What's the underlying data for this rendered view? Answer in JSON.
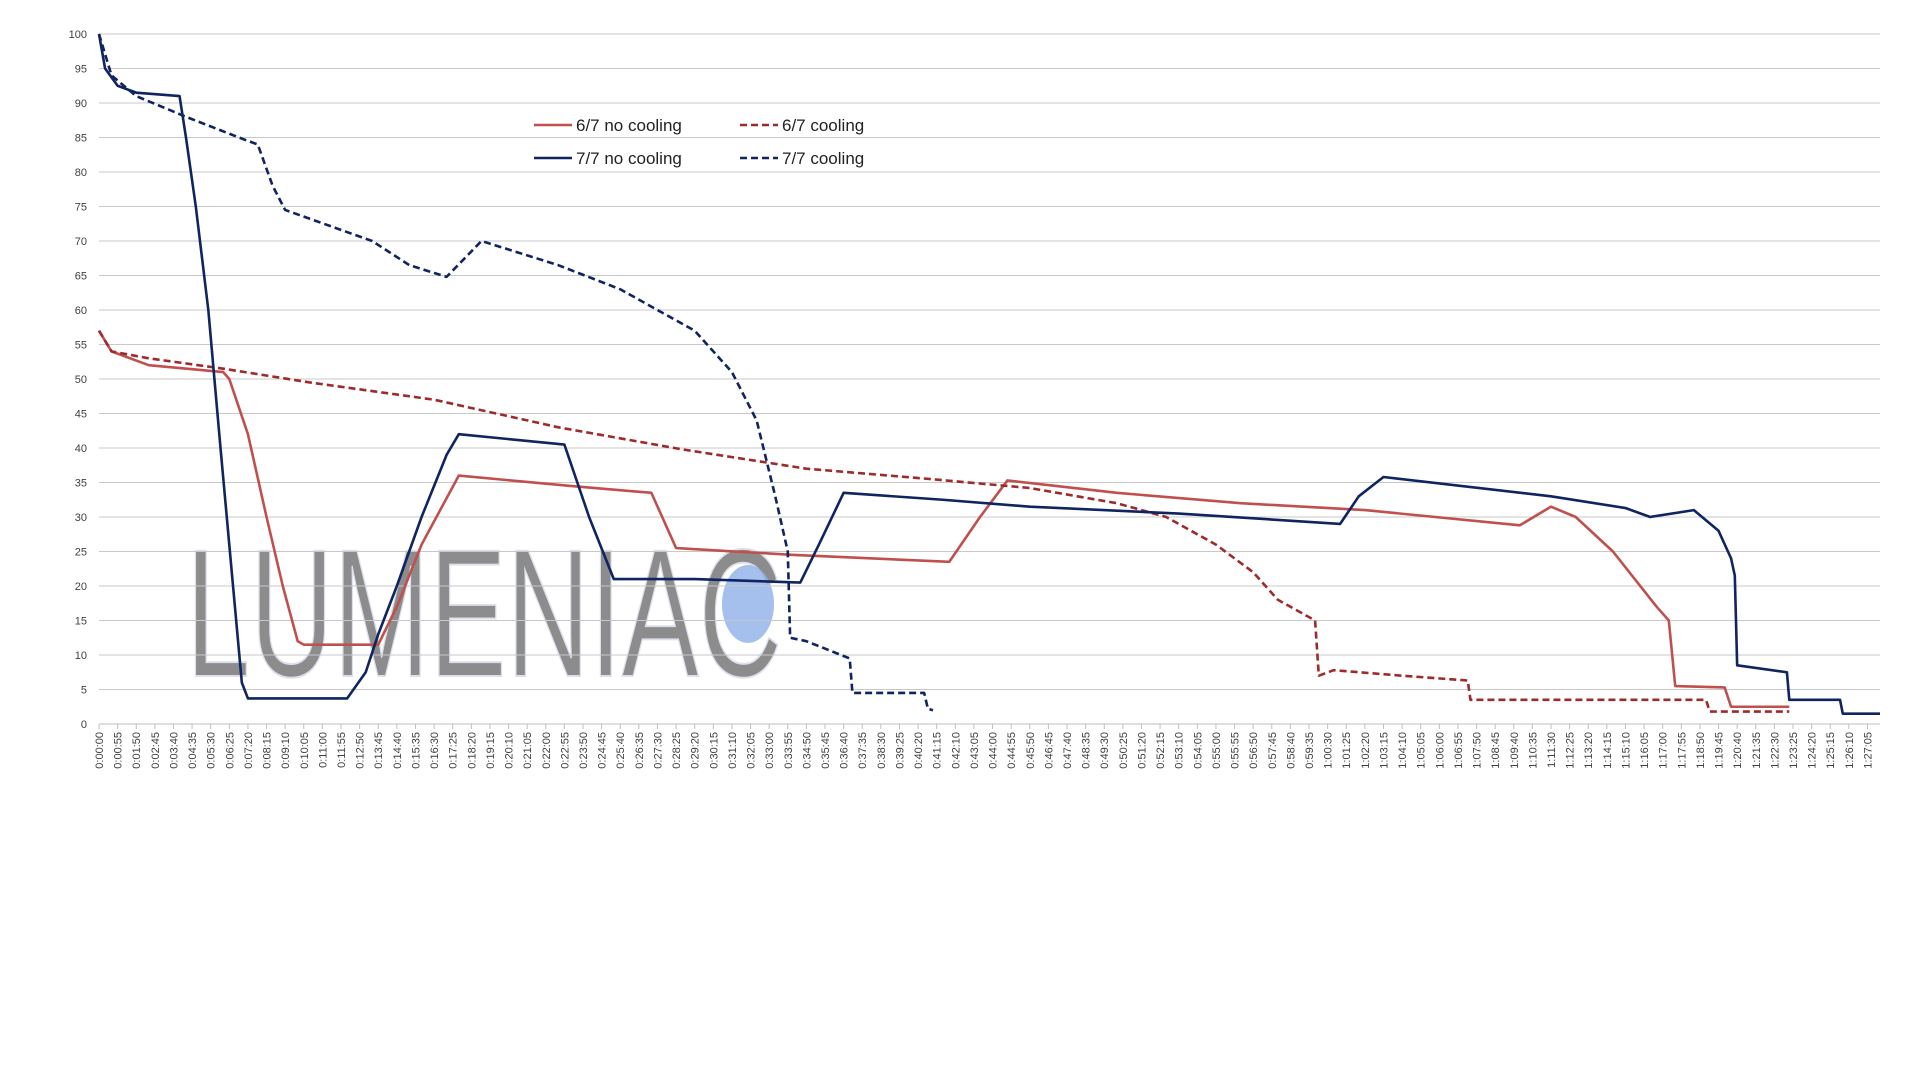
{
  "chart_data": {
    "type": "line",
    "watermark": "LUMENIAC",
    "xlim": [
      0,
      5262
    ],
    "ylim": [
      0,
      100
    ],
    "yticks": [
      0,
      5,
      10,
      15,
      20,
      25,
      30,
      35,
      40,
      45,
      50,
      55,
      60,
      65,
      70,
      75,
      80,
      85,
      90,
      95,
      100
    ],
    "xticks": [
      {
        "value": 0,
        "label": "0:00:00"
      },
      {
        "value": 55,
        "label": "0:00:55"
      },
      {
        "value": 110,
        "label": "0:01:50"
      },
      {
        "value": 165,
        "label": "0:02:45"
      },
      {
        "value": 220,
        "label": "0:03:40"
      },
      {
        "value": 275,
        "label": "0:04:35"
      },
      {
        "value": 330,
        "label": "0:05:30"
      },
      {
        "value": 385,
        "label": "0:06:25"
      },
      {
        "value": 440,
        "label": "0:07:20"
      },
      {
        "value": 495,
        "label": "0:08:15"
      },
      {
        "value": 550,
        "label": "0:09:10"
      },
      {
        "value": 605,
        "label": "0:10:05"
      },
      {
        "value": 660,
        "label": "0:11:00"
      },
      {
        "value": 715,
        "label": "0:11:55"
      },
      {
        "value": 770,
        "label": "0:12:50"
      },
      {
        "value": 825,
        "label": "0:13:45"
      },
      {
        "value": 880,
        "label": "0:14:40"
      },
      {
        "value": 935,
        "label": "0:15:35"
      },
      {
        "value": 990,
        "label": "0:16:30"
      },
      {
        "value": 1045,
        "label": "0:17:25"
      },
      {
        "value": 1100,
        "label": "0:18:20"
      },
      {
        "value": 1155,
        "label": "0:19:15"
      },
      {
        "value": 1210,
        "label": "0:20:10"
      },
      {
        "value": 1265,
        "label": "0:21:05"
      },
      {
        "value": 1320,
        "label": "0:22:00"
      },
      {
        "value": 1375,
        "label": "0:22:55"
      },
      {
        "value": 1430,
        "label": "0:23:50"
      },
      {
        "value": 1485,
        "label": "0:24:45"
      },
      {
        "value": 1540,
        "label": "0:25:40"
      },
      {
        "value": 1595,
        "label": "0:26:35"
      },
      {
        "value": 1650,
        "label": "0:27:30"
      },
      {
        "value": 1705,
        "label": "0:28:25"
      },
      {
        "value": 1760,
        "label": "0:29:20"
      },
      {
        "value": 1815,
        "label": "0:30:15"
      },
      {
        "value": 1870,
        "label": "0:31:10"
      },
      {
        "value": 1925,
        "label": "0:32:05"
      },
      {
        "value": 1980,
        "label": "0:33:00"
      },
      {
        "value": 2035,
        "label": "0:33:55"
      },
      {
        "value": 2090,
        "label": "0:34:50"
      },
      {
        "value": 2145,
        "label": "0:35:45"
      },
      {
        "value": 2200,
        "label": "0:36:40"
      },
      {
        "value": 2255,
        "label": "0:37:35"
      },
      {
        "value": 2310,
        "label": "0:38:30"
      },
      {
        "value": 2365,
        "label": "0:39:25"
      },
      {
        "value": 2420,
        "label": "0:40:20"
      },
      {
        "value": 2475,
        "label": "0:41:15"
      },
      {
        "value": 2530,
        "label": "0:42:10"
      },
      {
        "value": 2585,
        "label": "0:43:05"
      },
      {
        "value": 2640,
        "label": "0:44:00"
      },
      {
        "value": 2695,
        "label": "0:44:55"
      },
      {
        "value": 2750,
        "label": "0:45:50"
      },
      {
        "value": 2805,
        "label": "0:46:45"
      },
      {
        "value": 2860,
        "label": "0:47:40"
      },
      {
        "value": 2915,
        "label": "0:48:35"
      },
      {
        "value": 2970,
        "label": "0:49:30"
      },
      {
        "value": 3025,
        "label": "0:50:25"
      },
      {
        "value": 3080,
        "label": "0:51:20"
      },
      {
        "value": 3135,
        "label": "0:52:15"
      },
      {
        "value": 3190,
        "label": "0:53:10"
      },
      {
        "value": 3245,
        "label": "0:54:05"
      },
      {
        "value": 3300,
        "label": "0:55:00"
      },
      {
        "value": 3355,
        "label": "0:55:55"
      },
      {
        "value": 3410,
        "label": "0:56:50"
      },
      {
        "value": 3465,
        "label": "0:57:45"
      },
      {
        "value": 3520,
        "label": "0:58:40"
      },
      {
        "value": 3575,
        "label": "0:59:35"
      },
      {
        "value": 3630,
        "label": "1:00:30"
      },
      {
        "value": 3685,
        "label": "1:01:25"
      },
      {
        "value": 3740,
        "label": "1:02:20"
      },
      {
        "value": 3795,
        "label": "1:03:15"
      },
      {
        "value": 3850,
        "label": "1:04:10"
      },
      {
        "value": 3905,
        "label": "1:05:05"
      },
      {
        "value": 3960,
        "label": "1:06:00"
      },
      {
        "value": 4015,
        "label": "1:06:55"
      },
      {
        "value": 4070,
        "label": "1:07:50"
      },
      {
        "value": 4125,
        "label": "1:08:45"
      },
      {
        "value": 4180,
        "label": "1:09:40"
      },
      {
        "value": 4235,
        "label": "1:10:35"
      },
      {
        "value": 4290,
        "label": "1:11:30"
      },
      {
        "value": 4345,
        "label": "1:12:25"
      },
      {
        "value": 4400,
        "label": "1:13:20"
      },
      {
        "value": 4455,
        "label": "1:14:15"
      },
      {
        "value": 4510,
        "label": "1:15:10"
      },
      {
        "value": 4565,
        "label": "1:16:05"
      },
      {
        "value": 4620,
        "label": "1:17:00"
      },
      {
        "value": 4675,
        "label": "1:17:55"
      },
      {
        "value": 4730,
        "label": "1:18:50"
      },
      {
        "value": 4785,
        "label": "1:19:45"
      },
      {
        "value": 4840,
        "label": "1:20:40"
      },
      {
        "value": 4895,
        "label": "1:21:35"
      },
      {
        "value": 4950,
        "label": "1:22:30"
      },
      {
        "value": 5005,
        "label": "1:23:25"
      },
      {
        "value": 5060,
        "label": "1:24:20"
      },
      {
        "value": 5115,
        "label": "1:25:15"
      },
      {
        "value": 5170,
        "label": "1:26:10"
      },
      {
        "value": 5225,
        "label": "1:27:05"
      }
    ],
    "grid": true,
    "series": [
      {
        "name": "6/7 no cooling",
        "color": "#c0504d",
        "style": "solid",
        "x": [
          0,
          37,
          147,
          367,
          385,
          440,
          495,
          543,
          587,
          605,
          825,
          880,
          953,
          1063,
          1393,
          1632,
          1705,
          2053,
          2512,
          2603,
          2684,
          3007,
          3373,
          3740,
          4198,
          4290,
          4363,
          4473,
          4602,
          4638,
          4657,
          4803,
          4822,
          4994
        ],
        "values": [
          57,
          54,
          52,
          51,
          50,
          42,
          30,
          20,
          12,
          11.5,
          11.5,
          17,
          26,
          36,
          34.5,
          33.5,
          25.5,
          24.5,
          23.5,
          30,
          35.3,
          33.5,
          32,
          31,
          28.8,
          31.5,
          30,
          25,
          17,
          15,
          5.5,
          5.3,
          2.5,
          2.5
        ]
      },
      {
        "name": "6/7 cooling",
        "color": "#9e2a2b",
        "style": "dashed",
        "x": [
          0,
          37,
          147,
          367,
          623,
          990,
          1357,
          1723,
          2090,
          2457,
          2750,
          3007,
          3153,
          3300,
          3410,
          3483,
          3593,
          3604,
          3648,
          3850,
          4044,
          4052,
          4748,
          4759,
          4994
        ],
        "values": [
          57,
          54,
          53,
          51.5,
          49.5,
          47,
          43,
          39.8,
          37,
          35.5,
          34.2,
          32,
          30,
          26,
          22,
          18,
          15,
          7,
          7.8,
          7,
          6.3,
          3.5,
          3.5,
          1.8,
          1.8
        ]
      },
      {
        "name": "7/7 no cooling",
        "color": "#0f2460",
        "style": "solid",
        "x": [
          0,
          18,
          55,
          110,
          238,
          257,
          286,
          323,
          359,
          396,
          422,
          440,
          733,
          788,
          825,
          880,
          953,
          1027,
          1063,
          1375,
          1448,
          1521,
          1760,
          2072,
          2127,
          2200,
          2493,
          2750,
          3190,
          3667,
          3722,
          3795,
          4290,
          4510,
          4583,
          4712,
          4785,
          4822,
          4833,
          4840,
          4987,
          4994,
          5144,
          5152,
          5262
        ],
        "values": [
          100,
          95,
          92.5,
          91.5,
          91,
          85,
          75,
          60,
          40,
          20,
          6,
          3.7,
          3.7,
          7.5,
          13,
          20,
          30,
          39,
          42,
          40.5,
          30,
          21,
          21,
          20.5,
          26,
          33.5,
          32.5,
          31.5,
          30.5,
          29,
          33,
          35.8,
          33,
          31.3,
          30,
          31,
          28,
          24,
          21.5,
          8.5,
          7.5,
          3.5,
          3.5,
          1.5,
          1.5
        ]
      },
      {
        "name": "7/7 cooling",
        "color": "#0f2460",
        "style": "dashed",
        "x": [
          0,
          37,
          110,
          257,
          440,
          469,
          513,
          550,
          807,
          917,
          1027,
          1130,
          1357,
          1540,
          1650,
          1760,
          1870,
          1943,
          1998,
          2035,
          2042,
          2090,
          2218,
          2226,
          2438,
          2449,
          2464
        ],
        "values": [
          100,
          94,
          91,
          88,
          84.5,
          84,
          78,
          74.5,
          70,
          66.5,
          64.8,
          70,
          66.5,
          63,
          60,
          57,
          51,
          44,
          33,
          25,
          12.5,
          12,
          9.5,
          4.5,
          4.5,
          2.2,
          2
        ]
      }
    ]
  }
}
